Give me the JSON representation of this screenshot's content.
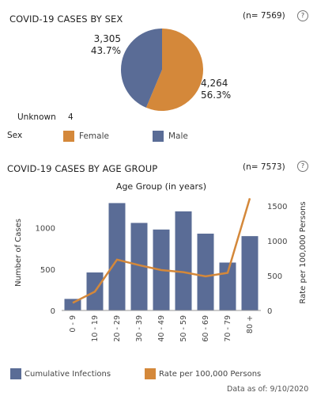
{
  "colors": {
    "female": "#D4883A",
    "male": "#5A6C96",
    "unknown": "#cccccc"
  },
  "sex_section": {
    "title": "COVID-19 CASES BY SEX",
    "n_label": "(n= 7569)",
    "help": "?",
    "male_count": "3,305",
    "male_pct": "43.7%",
    "female_count": "4,264",
    "female_pct": "56.3%",
    "unknown_label": "Unknown",
    "unknown_value": "4",
    "legend_title": "Sex",
    "legend_female": "Female",
    "legend_male": "Male"
  },
  "age_section": {
    "title": "COVID-19 CASES BY AGE GROUP",
    "n_label": "(n= 7573)",
    "help": "?",
    "legend_bar": "Cumulative Infections",
    "legend_line": "Rate per 100,000 Persons"
  },
  "footer": {
    "data_as_of": "Data as of:  9/10/2020"
  },
  "chart_data": [
    {
      "type": "pie",
      "categories": [
        "Female",
        "Male"
      ],
      "values": [
        4264,
        3305
      ],
      "percent": [
        56.3,
        43.7
      ]
    },
    {
      "type": "bar",
      "title": "Age Group (in years)",
      "categories": [
        "0 - 9",
        "10 - 19",
        "20 - 29",
        "30 - 39",
        "40 - 49",
        "50 - 59",
        "60 - 69",
        "70 - 79",
        "80 +"
      ],
      "ylabel": "Number of Cases",
      "y2label": "Rate per 100,000 Persons",
      "ylim": [
        0,
        1400
      ],
      "y2lim": [
        0,
        1660
      ],
      "yticks": [
        0,
        500,
        1000
      ],
      "y2ticks": [
        0,
        500,
        1000,
        1500
      ],
      "series": [
        {
          "name": "Cumulative Infections",
          "axis": "left",
          "values": [
            140,
            460,
            1300,
            1060,
            980,
            1200,
            930,
            580,
            900
          ]
        },
        {
          "name": "Rate per 100,000 Persons",
          "axis": "right",
          "values": [
            110,
            270,
            730,
            650,
            580,
            550,
            490,
            540,
            1610
          ]
        }
      ]
    }
  ]
}
